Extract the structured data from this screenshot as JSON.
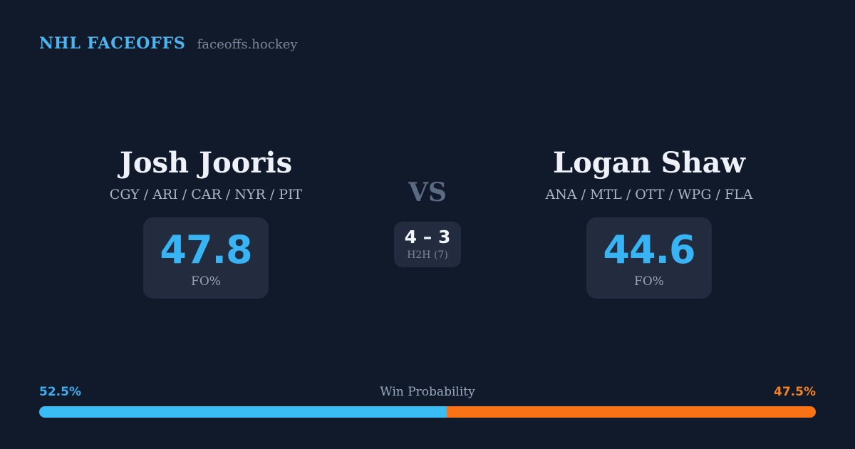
{
  "header": {
    "brand": "NHL FACEOFFS",
    "site": "faceoffs.hockey"
  },
  "matchup": {
    "vs_label": "VS",
    "h2h": {
      "score": "4 – 3",
      "label": "H2H (7)"
    },
    "players": [
      {
        "name": "Josh Jooris",
        "teams": "CGY / ARI / CAR / NYR / PIT",
        "fo_pct": "47.8",
        "stat_label": "FO%"
      },
      {
        "name": "Logan Shaw",
        "teams": "ANA / MTL / OTT / WPG / FLA",
        "fo_pct": "44.6",
        "stat_label": "FO%"
      }
    ]
  },
  "win_probability": {
    "title": "Win Probability",
    "left_label": "52.5%",
    "right_label": "47.5%",
    "left_value": 52.5,
    "right_value": 47.5,
    "left_color": "#3abcf5",
    "right_color": "#f97316"
  },
  "colors": {
    "background": "#111a2b",
    "card_background": "#222c3e",
    "brand_blue": "#4cb5f0",
    "stat_blue": "#38b3f3",
    "bar_blue": "#3abcf5",
    "bar_orange": "#f97316",
    "text_white": "#eef2f8",
    "text_muted": "#98a2b5"
  }
}
